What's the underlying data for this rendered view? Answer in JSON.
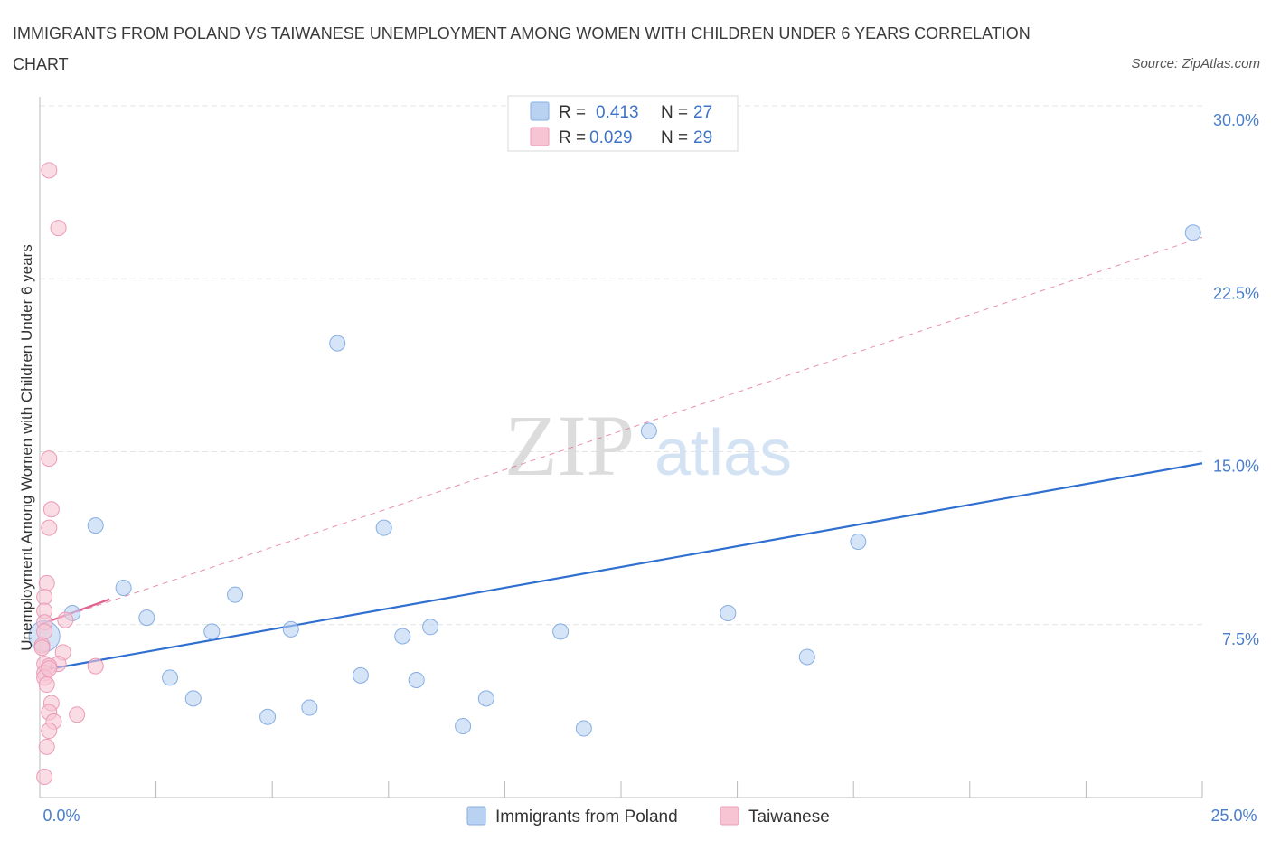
{
  "title": "IMMIGRANTS FROM POLAND VS TAIWANESE UNEMPLOYMENT AMONG WOMEN WITH CHILDREN UNDER 6 YEARS CORRELATION CHART",
  "source": "Source: ZipAtlas.com",
  "watermark": {
    "zip": "ZIP",
    "atlas": "atlas"
  },
  "legend": {
    "rows": [
      {
        "r_label": "R =",
        "r_value": "0.413",
        "n_label": "N =",
        "n_value": "27"
      },
      {
        "r_label": "R =",
        "r_value": "0.029",
        "n_label": "N =",
        "n_value": "29"
      }
    ]
  },
  "bottom_legend": [
    "Immigrants from Poland",
    "Taiwanese"
  ],
  "colors": {
    "blue_fill": "#b9d2f2",
    "blue_stroke": "#86aee3",
    "blue_line": "#2f6fd0",
    "pink_fill": "#f7c4d3",
    "pink_stroke": "#ec9bb6",
    "pink_line": "#e0608e",
    "grid": "#e4e4e4",
    "tick_label": "#4a7ec9"
  },
  "chart_data": {
    "type": "scatter",
    "title": "IMMIGRANTS FROM POLAND VS TAIWANESE UNEMPLOYMENT AMONG WOMEN WITH CHILDREN UNDER 6 YEARS CORRELATION CHART",
    "xlabel": "",
    "ylabel": "Unemployment Among Women with Children Under 6 years",
    "xlim": [
      0,
      25
    ],
    "ylim": [
      0,
      30
    ],
    "x_tick_labels": [
      "0.0%",
      "25.0%"
    ],
    "y_ticks": [
      7.5,
      15.0,
      22.5,
      30.0
    ],
    "y_tick_labels": [
      "7.5%",
      "15.0%",
      "22.5%",
      "30.0%"
    ],
    "grid": true,
    "legend_position": "top-center",
    "series": [
      {
        "name": "Immigrants from Poland",
        "r": 0.413,
        "n": 27,
        "points": [
          [
            0.1,
            7.0
          ],
          [
            0.7,
            8.0
          ],
          [
            1.2,
            11.8
          ],
          [
            1.8,
            9.1
          ],
          [
            2.3,
            7.8
          ],
          [
            2.8,
            5.2
          ],
          [
            3.3,
            4.3
          ],
          [
            3.7,
            7.2
          ],
          [
            4.2,
            8.8
          ],
          [
            4.9,
            3.5
          ],
          [
            5.4,
            7.3
          ],
          [
            5.8,
            3.9
          ],
          [
            6.4,
            19.7
          ],
          [
            6.9,
            5.3
          ],
          [
            7.4,
            11.7
          ],
          [
            7.8,
            7.0
          ],
          [
            8.1,
            5.1
          ],
          [
            8.4,
            7.4
          ],
          [
            9.1,
            3.1
          ],
          [
            9.6,
            4.3
          ],
          [
            11.2,
            7.2
          ],
          [
            11.7,
            3.0
          ],
          [
            13.1,
            15.9
          ],
          [
            14.8,
            8.0
          ],
          [
            16.5,
            6.1
          ],
          [
            17.6,
            11.1
          ],
          [
            24.8,
            24.5
          ]
        ],
        "trend": {
          "x": [
            0,
            25
          ],
          "y": [
            5.5,
            14.5
          ]
        }
      },
      {
        "name": "Taiwanese",
        "r": 0.029,
        "n": 29,
        "points": [
          [
            0.2,
            27.2
          ],
          [
            0.4,
            24.7
          ],
          [
            0.2,
            14.7
          ],
          [
            0.25,
            12.5
          ],
          [
            0.2,
            11.7
          ],
          [
            0.15,
            9.3
          ],
          [
            0.1,
            8.7
          ],
          [
            0.1,
            8.1
          ],
          [
            0.1,
            7.6
          ],
          [
            0.55,
            7.7
          ],
          [
            0.1,
            7.2
          ],
          [
            0.05,
            6.6
          ],
          [
            0.5,
            6.3
          ],
          [
            0.1,
            5.8
          ],
          [
            0.4,
            5.8
          ],
          [
            1.2,
            5.7
          ],
          [
            0.2,
            5.7
          ],
          [
            0.1,
            5.4
          ],
          [
            0.1,
            5.2
          ],
          [
            0.15,
            4.9
          ],
          [
            0.25,
            4.1
          ],
          [
            0.2,
            3.7
          ],
          [
            0.8,
            3.6
          ],
          [
            0.3,
            3.3
          ],
          [
            0.2,
            2.9
          ],
          [
            0.15,
            2.2
          ],
          [
            0.1,
            0.9
          ],
          [
            0.05,
            6.5
          ],
          [
            0.2,
            5.6
          ]
        ],
        "trend": {
          "x": [
            0,
            1.5
          ],
          "y": [
            7.5,
            8.6
          ]
        },
        "trend_extended": {
          "x": [
            0,
            25
          ],
          "y": [
            7.5,
            24.3
          ]
        }
      }
    ]
  }
}
